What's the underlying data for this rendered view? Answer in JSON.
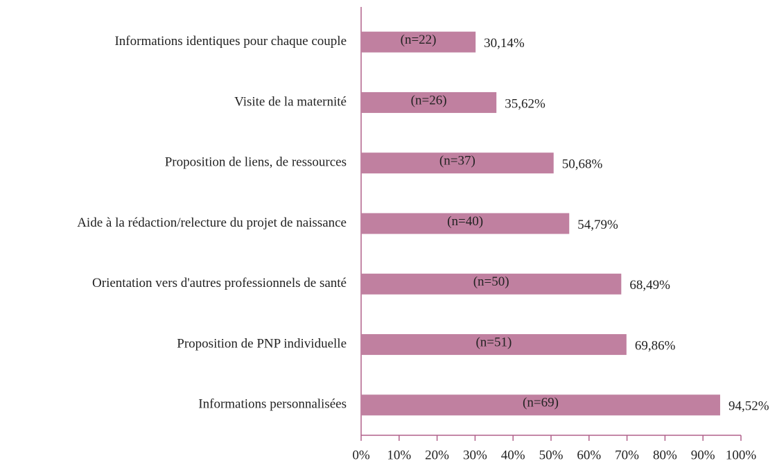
{
  "chart_data": {
    "type": "barh",
    "categories": [
      "Informations identiques pour chaque couple",
      "Visite de la maternité",
      "Proposition de liens, de ressources",
      "Aide à la rédaction/relecture du projet de naissance",
      "Orientation vers d'autres professionnels de santé",
      "Proposition de PNP individuelle",
      "Informations personnalisées"
    ],
    "values": [
      30.14,
      35.62,
      50.68,
      54.79,
      68.49,
      69.86,
      94.52
    ],
    "value_labels": [
      "30,14%",
      "35,62%",
      "50,68%",
      "54,79%",
      "68,49%",
      "69,86%",
      "94,52%"
    ],
    "bar_labels": [
      "(n=22)",
      "(n=26)",
      "(n=37)",
      "(n=40)",
      "(n=50)",
      "(n=51)",
      "(n=69)"
    ],
    "color": "#c080a0",
    "axis_color": "#b0608a",
    "xlim": [
      0,
      100
    ],
    "xticks": [
      {
        "value": 0,
        "label": "0%"
      },
      {
        "value": 10,
        "label": "10%"
      },
      {
        "value": 20,
        "label": "20%"
      },
      {
        "value": 30,
        "label": "30%"
      },
      {
        "value": 40,
        "label": "40%"
      },
      {
        "value": 50,
        "label": "50%"
      },
      {
        "value": 60,
        "label": "60%"
      },
      {
        "value": 70,
        "label": "70%"
      },
      {
        "value": 80,
        "label": "80%"
      },
      {
        "value": 90,
        "label": "90%"
      },
      {
        "value": 100,
        "label": "100%"
      }
    ],
    "grid": false
  }
}
